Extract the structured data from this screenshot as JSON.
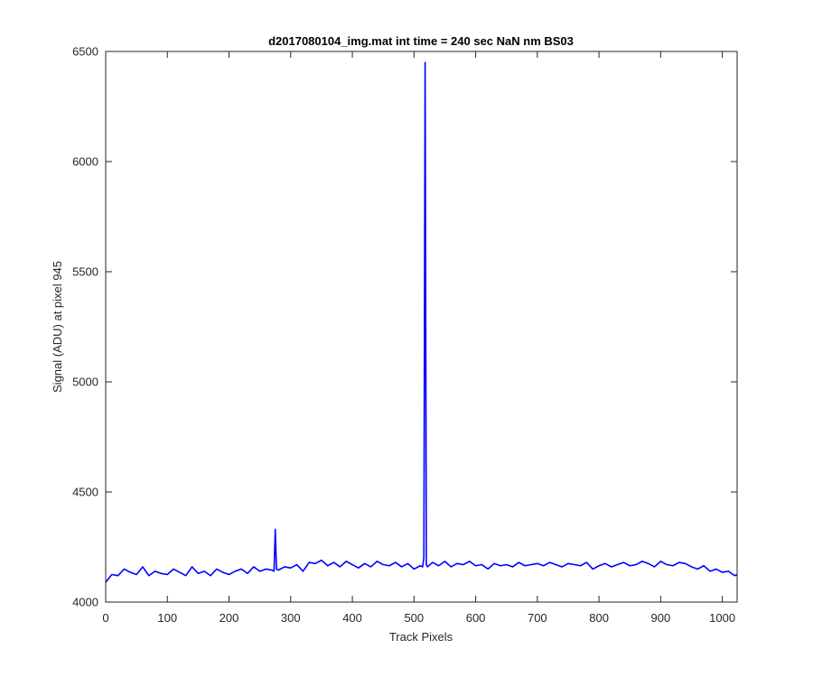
{
  "chart_data": {
    "type": "line",
    "title": "d2017080104_img.mat int time = 240 sec  NaN nm BS03",
    "xlabel": "Track Pixels",
    "ylabel": "Signal (ADU) at pixel 945",
    "xlim": [
      0,
      1024
    ],
    "ylim": [
      4000,
      6500
    ],
    "xticks": [
      0,
      100,
      200,
      300,
      400,
      500,
      600,
      700,
      800,
      900,
      1000
    ],
    "yticks": [
      4000,
      4500,
      5000,
      5500,
      6000,
      6500
    ],
    "xtick_labels": [
      "0",
      "100",
      "200",
      "300",
      "400",
      "500",
      "600",
      "700",
      "800",
      "900",
      "1000"
    ],
    "ytick_labels": [
      "4000",
      "4500",
      "5000",
      "5500",
      "6000",
      "6500"
    ],
    "grid": false,
    "series_color": "#0000ff",
    "series": [
      {
        "x": [
          0,
          10,
          20,
          30,
          40,
          50,
          60,
          70,
          80,
          90,
          100,
          110,
          120,
          130,
          140,
          150,
          160,
          170,
          180,
          190,
          200,
          210,
          220,
          230,
          240,
          250,
          260,
          270,
          273,
          275,
          277,
          280,
          290,
          300,
          310,
          320,
          330,
          340,
          350,
          360,
          370,
          380,
          390,
          400,
          410,
          420,
          430,
          440,
          450,
          460,
          470,
          480,
          490,
          500,
          510,
          514,
          516,
          518,
          520,
          522,
          530,
          540,
          550,
          560,
          570,
          580,
          590,
          600,
          610,
          620,
          630,
          640,
          650,
          660,
          670,
          680,
          690,
          700,
          710,
          720,
          730,
          740,
          750,
          760,
          770,
          780,
          790,
          800,
          810,
          820,
          830,
          840,
          850,
          860,
          870,
          880,
          890,
          900,
          910,
          920,
          930,
          940,
          950,
          960,
          970,
          980,
          990,
          1000,
          1010,
          1020,
          1024
        ],
        "y": [
          4090,
          4125,
          4120,
          4150,
          4135,
          4125,
          4160,
          4120,
          4140,
          4130,
          4125,
          4150,
          4135,
          4120,
          4160,
          4130,
          4140,
          4120,
          4150,
          4135,
          4125,
          4140,
          4150,
          4130,
          4160,
          4140,
          4150,
          4145,
          4140,
          4330,
          4150,
          4145,
          4160,
          4155,
          4170,
          4140,
          4180,
          4175,
          4190,
          4165,
          4180,
          4160,
          4185,
          4170,
          4155,
          4175,
          4160,
          4185,
          4170,
          4165,
          4180,
          4160,
          4175,
          4150,
          4165,
          4160,
          4200,
          6450,
          4170,
          4160,
          4180,
          4165,
          4185,
          4160,
          4175,
          4170,
          4185,
          4165,
          4170,
          4150,
          4175,
          4165,
          4170,
          4160,
          4180,
          4165,
          4170,
          4175,
          4165,
          4180,
          4170,
          4160,
          4175,
          4170,
          4165,
          4180,
          4150,
          4165,
          4175,
          4160,
          4170,
          4180,
          4165,
          4170,
          4185,
          4175,
          4160,
          4185,
          4170,
          4165,
          4180,
          4175,
          4160,
          4150,
          4165,
          4140,
          4150,
          4135,
          4140,
          4120,
          4125
        ]
      }
    ]
  }
}
